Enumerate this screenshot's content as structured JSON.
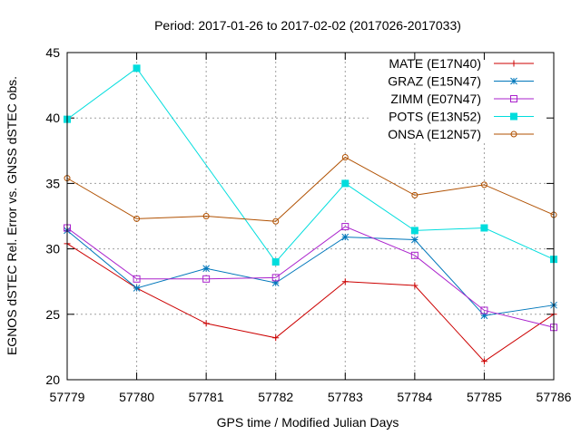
{
  "chart_data": {
    "type": "line",
    "title": "Period: 2017-01-26 to 2017-02-02 (2017026-2017033)",
    "xlabel": "GPS time / Modified Julian Days",
    "ylabel": "EGNOS dSTEC Rel. Error vs. GNSS dSTEC obs.",
    "xlim": [
      57779,
      57786
    ],
    "ylim": [
      20,
      45
    ],
    "xticks": [
      57779,
      57780,
      57781,
      57782,
      57783,
      57784,
      57785,
      57786
    ],
    "yticks": [
      20,
      25,
      30,
      35,
      40,
      45
    ],
    "grid": true,
    "legend_position": "top-right",
    "x": [
      57779,
      57780,
      57781,
      57782,
      57783,
      57784,
      57785,
      57786
    ],
    "series": [
      {
        "name": "MATE (E17N40)",
        "color": "#cc0000",
        "marker": "plus",
        "values": [
          30.4,
          27.0,
          24.3,
          23.2,
          27.5,
          27.2,
          21.4,
          25.0
        ]
      },
      {
        "name": "GRAZ (E15N47)",
        "color": "#0077bb",
        "marker": "star",
        "values": [
          31.4,
          27.0,
          28.5,
          27.4,
          30.9,
          30.7,
          24.9,
          25.7
        ]
      },
      {
        "name": "ZIMM (E07N47)",
        "color": "#aa22cc",
        "marker": "open-square",
        "values": [
          31.6,
          27.7,
          27.7,
          27.8,
          31.7,
          29.5,
          25.3,
          24.0
        ]
      },
      {
        "name": "POTS (E13N52)",
        "color": "#00dddd",
        "marker": "filled-square",
        "values": [
          39.9,
          43.8,
          null,
          29.0,
          35.0,
          31.4,
          31.6,
          29.2
        ]
      },
      {
        "name": "ONSA (E12N57)",
        "color": "#b05000",
        "marker": "open-circle",
        "values": [
          35.4,
          32.3,
          32.5,
          32.1,
          37.0,
          34.1,
          34.9,
          32.6
        ]
      }
    ]
  }
}
